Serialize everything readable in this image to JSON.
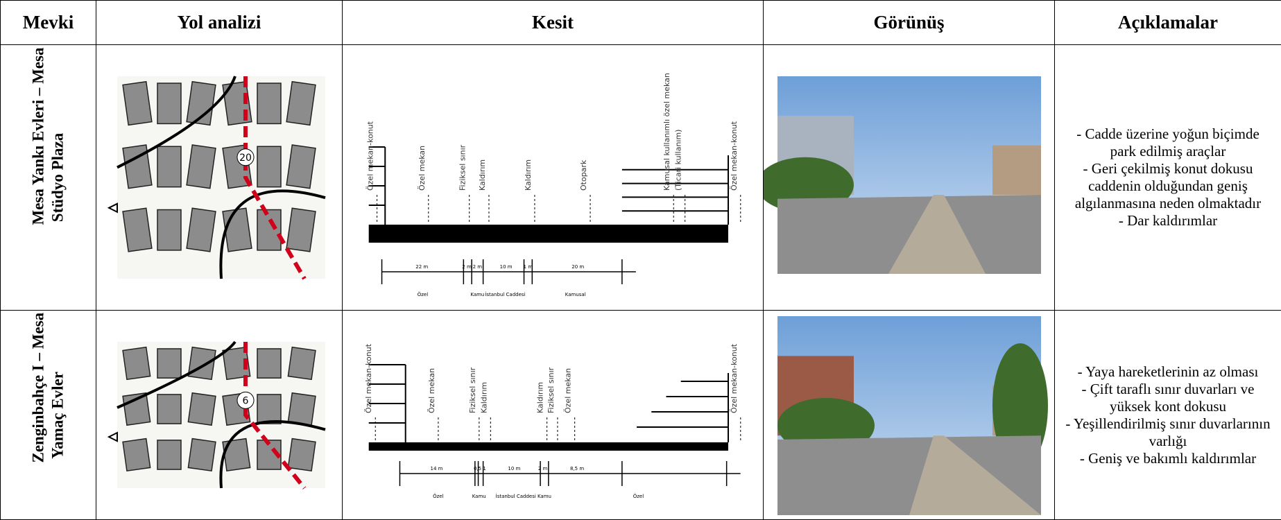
{
  "header": [
    "Mevki",
    "Yol analizi",
    "Kesit",
    "Görünüş",
    "Açıklamalar"
  ],
  "rows": [
    {
      "location": [
        "Mesa Yankı Evleri – Mesa",
        "Stüdyo Plaza"
      ],
      "map_labels": [
        "20"
      ],
      "section": {
        "labels": [
          "Özel mekan-konut",
          "Özel mekan",
          "Fiziksel sınır",
          "Kaldırım",
          "Kaldırım",
          "Otopark",
          "Kamusal kullanımlı özel mekan",
          "(Ticari kullanım)",
          "Özel mekan-konut"
        ],
        "dimensions": [
          "22 m",
          "2 m",
          "2 m",
          "10 m",
          "1 m",
          "20 m"
        ],
        "zones": [
          "Özel",
          "Kamu",
          "İstanbul Caddesi",
          "Kamusal"
        ]
      },
      "notes": [
        "- Cadde üzerine yoğun biçimde park edilmiş araçlar",
        "- Geri çekilmiş konut dokusu caddenin olduğundan geniş algılanmasına neden olmaktadır",
        "- Dar kaldırımlar"
      ]
    },
    {
      "location": [
        "Zenginbahçe I – Mesa",
        "Yamaç Evler"
      ],
      "map_labels": [
        "6"
      ],
      "section": {
        "labels": [
          "Özel mekan-konut",
          "Özel mekan",
          "Fiziksel sınır",
          "Kaldırım",
          "Kaldırım",
          "Fiziksel sınır",
          "Özel mekan",
          "Özel mekan-konut"
        ],
        "dimensions": [
          "14 m",
          "0,5 1",
          "10 m",
          "2 m",
          "8,5 m"
        ],
        "zones": [
          "Özel",
          "Kamu",
          "İstanbul Caddesi",
          "Kamu",
          "Özel"
        ]
      },
      "notes": [
        "- Yaya hareketlerinin az olması",
        "- Çift taraflı sınır duvarları ve yüksek kont dokusu",
        "- Yeşillendirilmiş sınır duvarlarının varlığı",
        "- Geniş ve bakımlı kaldırımlar"
      ]
    }
  ]
}
